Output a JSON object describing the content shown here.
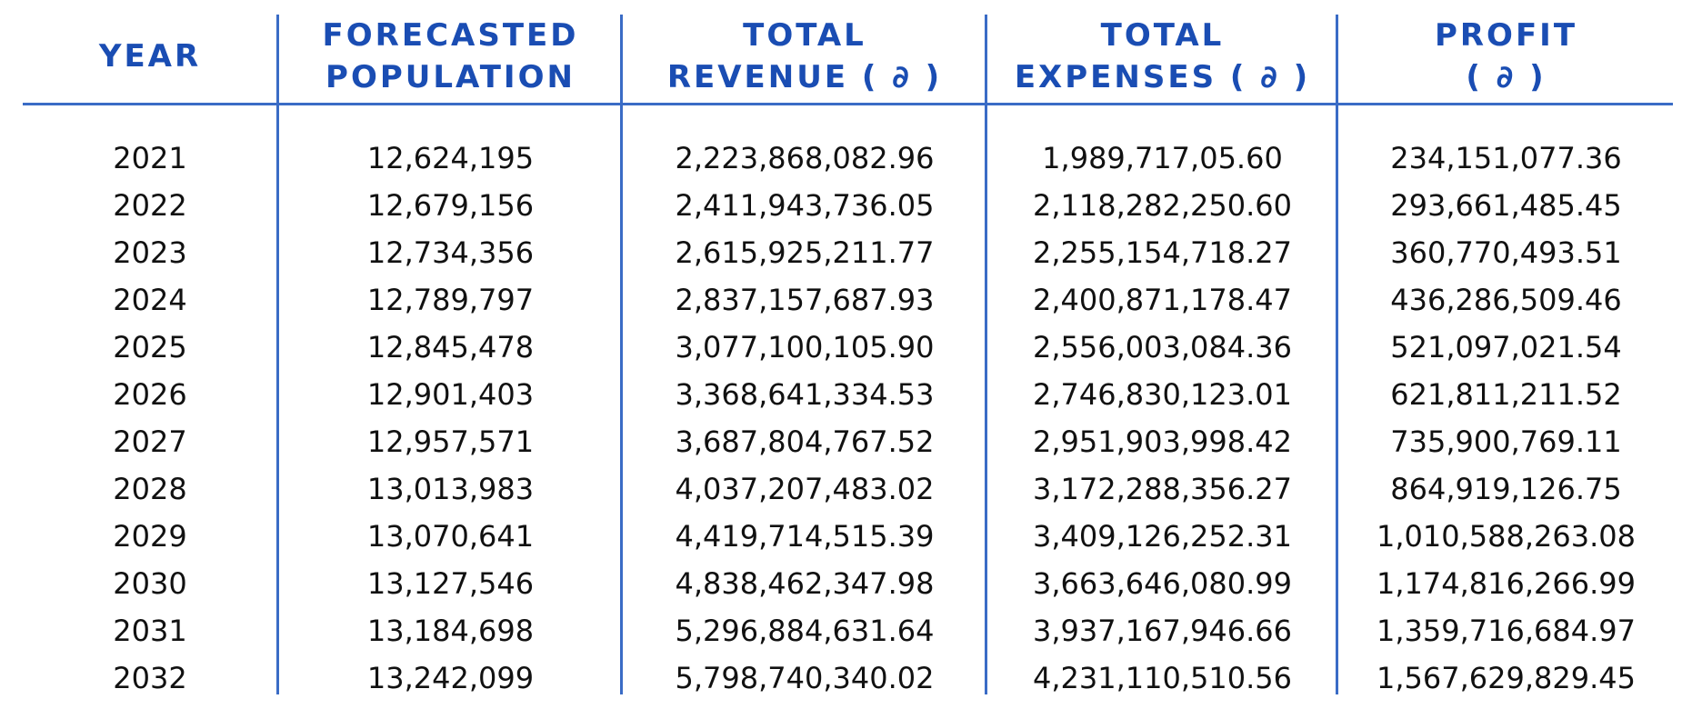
{
  "headers": [
    {
      "lines": [
        "YEAR"
      ]
    },
    {
      "lines": [
        "FORECASTED",
        "POPULATION"
      ]
    },
    {
      "lines": [
        "TOTAL",
        "REVENUE ( ∂ )"
      ]
    },
    {
      "lines": [
        "TOTAL",
        "EXPENSES ( ∂ )"
      ]
    },
    {
      "lines": [
        "PROFIT",
        "( ∂ )"
      ]
    }
  ],
  "rows": [
    [
      "2021",
      "12,624,195",
      "2,223,868,082.96",
      "1,989,717,05.60",
      "234,151,077.36"
    ],
    [
      "2022",
      "12,679,156",
      "2,411,943,736.05",
      "2,118,282,250.60",
      "293,661,485.45"
    ],
    [
      "2023",
      "12,734,356",
      "2,615,925,211.77",
      "2,255,154,718.27",
      "360,770,493.51"
    ],
    [
      "2024",
      "12,789,797",
      "2,837,157,687.93",
      "2,400,871,178.47",
      "436,286,509.46"
    ],
    [
      "2025",
      "12,845,478",
      "3,077,100,105.90",
      "2,556,003,084.36",
      "521,097,021.54"
    ],
    [
      "2026",
      "12,901,403",
      "3,368,641,334.53",
      "2,746,830,123.01",
      "621,811,211.52"
    ],
    [
      "2027",
      "12,957,571",
      "3,687,804,767.52",
      "2,951,903,998.42",
      "735,900,769.11"
    ],
    [
      "2028",
      "13,013,983",
      "4,037,207,483.02",
      "3,172,288,356.27",
      "864,919,126.75"
    ],
    [
      "2029",
      "13,070,641",
      "4,419,714,515.39",
      "3,409,126,252.31",
      "1,010,588,263.08"
    ],
    [
      "2030",
      "13,127,546",
      "4,838,462,347.98",
      "3,663,646,080.99",
      "1,174,816,266.99"
    ],
    [
      "2031",
      "13,184,698",
      "5,296,884,631.64",
      "3,937,167,946.66",
      "1,359,716,684.97"
    ],
    [
      "2032",
      "13,242,099",
      "5,798,740,340.02",
      "4,231,110,510.56",
      "1,567,629,829.45"
    ]
  ],
  "colors": {
    "header_text": "#1a4db3",
    "rule": "#3a6cc6",
    "body_text": "#111111"
  }
}
